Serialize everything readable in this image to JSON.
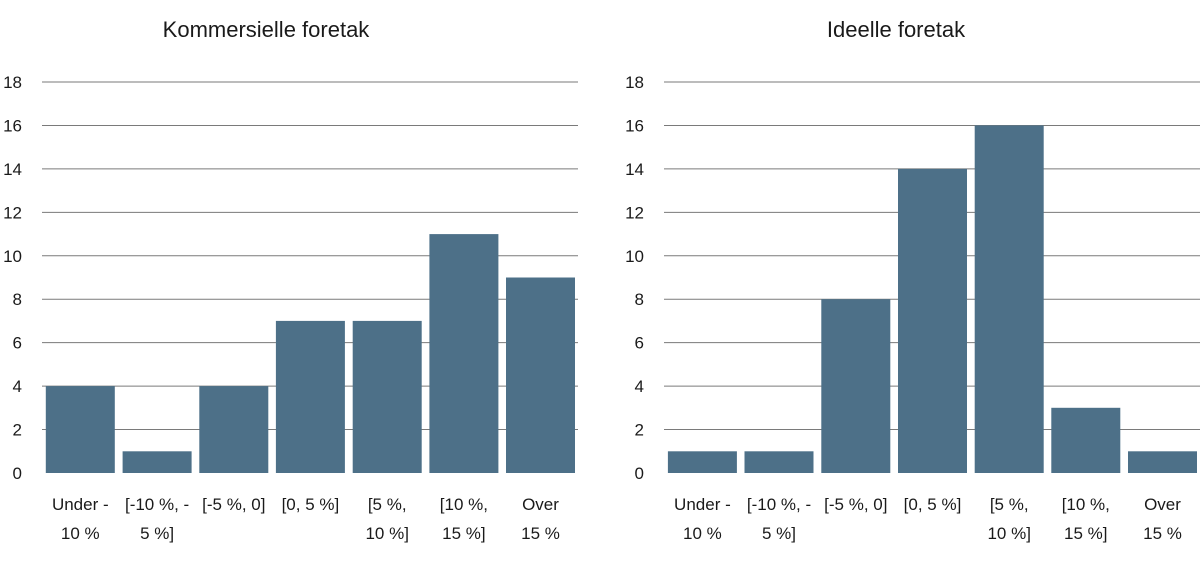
{
  "chart_data": [
    {
      "type": "bar",
      "title": "Kommersielle foretak",
      "xlabel": "",
      "ylabel": "",
      "ylim": [
        0,
        18
      ],
      "yticks": [
        "0",
        "2",
        "4",
        "6",
        "8",
        "10",
        "12",
        "14",
        "16",
        "18"
      ],
      "categories": [
        [
          "Under -",
          "10 %"
        ],
        [
          "[-10 %, -",
          "5 %]"
        ],
        [
          "[-5 %, 0]"
        ],
        [
          "[0, 5 %]"
        ],
        [
          "[5 %,",
          "10 %]"
        ],
        [
          "[10 %,",
          "15 %]"
        ],
        [
          "Over",
          "15 %"
        ]
      ],
      "values": [
        4,
        1,
        4,
        7,
        7,
        11,
        9
      ],
      "grid": true,
      "bar_color": "#4d7088"
    },
    {
      "type": "bar",
      "title": "Ideelle foretak",
      "xlabel": "",
      "ylabel": "",
      "ylim": [
        0,
        18
      ],
      "yticks": [
        "0",
        "2",
        "4",
        "6",
        "8",
        "10",
        "12",
        "14",
        "16",
        "18"
      ],
      "categories": [
        [
          "Under -",
          "10 %"
        ],
        [
          "[-10 %, -",
          "5 %]"
        ],
        [
          "[-5 %, 0]"
        ],
        [
          "[0, 5 %]"
        ],
        [
          "[5 %,",
          "10 %]"
        ],
        [
          "[10 %,",
          "15 %]"
        ],
        [
          "Over",
          "15 %"
        ]
      ],
      "values": [
        1,
        1,
        8,
        14,
        16,
        3,
        1
      ],
      "grid": true,
      "bar_color": "#4d7088"
    }
  ]
}
